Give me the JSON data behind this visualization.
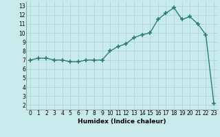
{
  "x": [
    0,
    1,
    2,
    3,
    4,
    5,
    6,
    7,
    8,
    9,
    10,
    11,
    12,
    13,
    14,
    15,
    16,
    17,
    18,
    19,
    20,
    21,
    22,
    23
  ],
  "y": [
    7.0,
    7.2,
    7.2,
    7.0,
    7.0,
    6.8,
    6.8,
    7.0,
    7.0,
    7.0,
    8.0,
    8.5,
    8.8,
    9.5,
    9.8,
    10.0,
    11.5,
    12.2,
    12.8,
    11.5,
    11.8,
    11.0,
    9.8,
    2.2
  ],
  "line_color": "#2d7d6e",
  "marker": "+",
  "marker_size": 4,
  "marker_linewidth": 1.2,
  "xlabel": "Humidex (Indice chaleur)",
  "xlim": [
    -0.5,
    23.5
  ],
  "ylim": [
    1.5,
    13.5
  ],
  "yticks": [
    2,
    3,
    4,
    5,
    6,
    7,
    8,
    9,
    10,
    11,
    12,
    13
  ],
  "xticks": [
    0,
    1,
    2,
    3,
    4,
    5,
    6,
    7,
    8,
    9,
    10,
    11,
    12,
    13,
    14,
    15,
    16,
    17,
    18,
    19,
    20,
    21,
    22,
    23
  ],
  "bg_color": "#c8eaea",
  "grid_color": "#b0d8d8",
  "tick_fontsize": 5.5,
  "label_fontsize": 6.5,
  "linewidth": 1.0
}
